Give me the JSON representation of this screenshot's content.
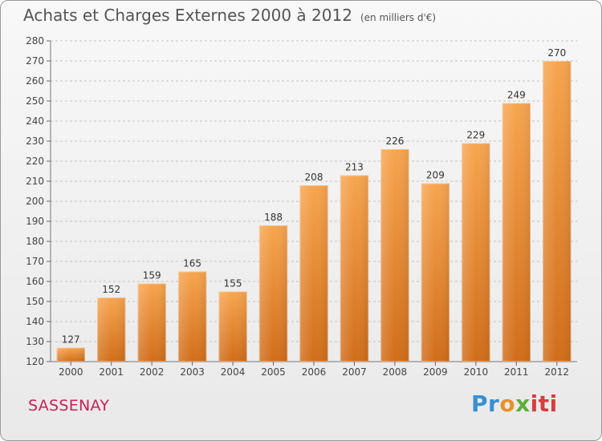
{
  "header": {
    "title": "Achats et Charges Externes 2000 à 2012",
    "unit": "(en milliers d'€)"
  },
  "footer": {
    "place": "SASSENAY",
    "logo": "Proxiti",
    "logo_colors": [
      "#3a8fd0",
      "#e7922e",
      "#5fae3a",
      "#d63e3e"
    ]
  },
  "chart_data": {
    "type": "bar",
    "categories": [
      "2000",
      "2001",
      "2002",
      "2003",
      "2004",
      "2005",
      "2006",
      "2007",
      "2008",
      "2009",
      "2010",
      "2011",
      "2012"
    ],
    "values": [
      127,
      152,
      159,
      165,
      155,
      188,
      208,
      213,
      226,
      209,
      229,
      249,
      270
    ],
    "xlabel": "",
    "ylabel": "",
    "ylim": [
      120,
      280
    ],
    "yticks": [
      120,
      130,
      140,
      150,
      160,
      170,
      180,
      190,
      200,
      210,
      220,
      230,
      240,
      250,
      260,
      270,
      280
    ],
    "grid": "horizontal dashed",
    "bar_color_top": "#f7a54f",
    "bar_color_bottom": "#d06d1a"
  }
}
